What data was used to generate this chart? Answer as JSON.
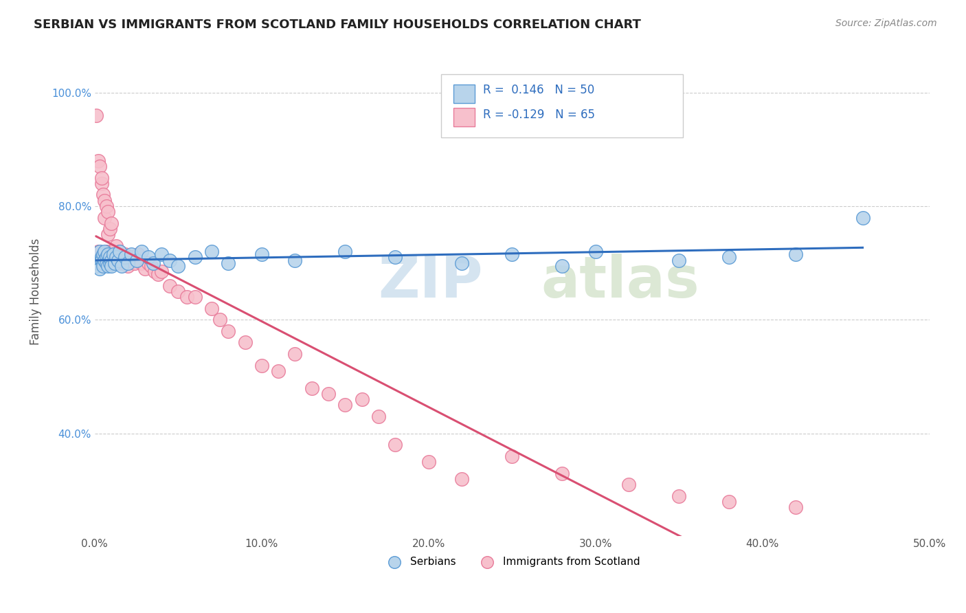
{
  "title": "SERBIAN VS IMMIGRANTS FROM SCOTLAND FAMILY HOUSEHOLDS CORRELATION CHART",
  "source": "Source: ZipAtlas.com",
  "ylabel": "Family Households",
  "xlim": [
    0.0,
    0.5
  ],
  "ylim": [
    0.22,
    1.08
  ],
  "x_ticks": [
    0.0,
    0.1,
    0.2,
    0.3,
    0.4,
    0.5
  ],
  "x_tick_labels": [
    "0.0%",
    "10.0%",
    "20.0%",
    "30.0%",
    "40.0%",
    "50.0%"
  ],
  "y_ticks": [
    0.4,
    0.6,
    0.8,
    1.0
  ],
  "y_tick_labels": [
    "40.0%",
    "60.0%",
    "80.0%",
    "100.0%"
  ],
  "R_serbian": 0.146,
  "N_serbian": 50,
  "R_scotland": -0.129,
  "N_scotland": 65,
  "serbian_fill": "#b8d4eb",
  "serbian_edge": "#5b9bd5",
  "scotland_fill": "#f7c0cc",
  "scotland_edge": "#e87b9a",
  "trend_serbian_color": "#2e6dbe",
  "trend_scotland_color": "#d94f72",
  "dashed_color": "#e8b0bc",
  "serbian_x": [
    0.001,
    0.002,
    0.003,
    0.003,
    0.004,
    0.004,
    0.005,
    0.005,
    0.005,
    0.006,
    0.006,
    0.007,
    0.007,
    0.008,
    0.008,
    0.009,
    0.009,
    0.01,
    0.01,
    0.011,
    0.012,
    0.013,
    0.014,
    0.015,
    0.016,
    0.018,
    0.02,
    0.022,
    0.025,
    0.028,
    0.032,
    0.035,
    0.04,
    0.045,
    0.05,
    0.06,
    0.07,
    0.08,
    0.1,
    0.12,
    0.15,
    0.18,
    0.22,
    0.25,
    0.28,
    0.3,
    0.35,
    0.38,
    0.42,
    0.46
  ],
  "serbian_y": [
    0.695,
    0.7,
    0.72,
    0.69,
    0.71,
    0.705,
    0.715,
    0.7,
    0.695,
    0.72,
    0.705,
    0.71,
    0.7,
    0.715,
    0.695,
    0.7,
    0.71,
    0.705,
    0.695,
    0.715,
    0.7,
    0.71,
    0.705,
    0.72,
    0.695,
    0.71,
    0.7,
    0.715,
    0.705,
    0.72,
    0.71,
    0.7,
    0.715,
    0.705,
    0.695,
    0.71,
    0.72,
    0.7,
    0.715,
    0.705,
    0.72,
    0.71,
    0.7,
    0.715,
    0.695,
    0.72,
    0.705,
    0.71,
    0.715,
    0.78
  ],
  "scotland_x": [
    0.001,
    0.001,
    0.002,
    0.002,
    0.003,
    0.003,
    0.004,
    0.004,
    0.005,
    0.005,
    0.006,
    0.006,
    0.007,
    0.007,
    0.008,
    0.008,
    0.009,
    0.009,
    0.01,
    0.01,
    0.011,
    0.012,
    0.013,
    0.014,
    0.015,
    0.016,
    0.017,
    0.018,
    0.019,
    0.02,
    0.022,
    0.024,
    0.026,
    0.028,
    0.03,
    0.032,
    0.034,
    0.036,
    0.038,
    0.04,
    0.045,
    0.05,
    0.055,
    0.06,
    0.07,
    0.075,
    0.08,
    0.09,
    0.1,
    0.11,
    0.12,
    0.13,
    0.14,
    0.15,
    0.16,
    0.17,
    0.18,
    0.2,
    0.22,
    0.25,
    0.28,
    0.32,
    0.35,
    0.38,
    0.42
  ],
  "scotland_y": [
    0.7,
    0.96,
    0.88,
    0.72,
    0.87,
    0.72,
    0.84,
    0.85,
    0.82,
    0.7,
    0.81,
    0.78,
    0.8,
    0.72,
    0.79,
    0.75,
    0.76,
    0.72,
    0.77,
    0.7,
    0.72,
    0.71,
    0.73,
    0.7,
    0.72,
    0.71,
    0.7,
    0.715,
    0.705,
    0.695,
    0.71,
    0.7,
    0.715,
    0.7,
    0.69,
    0.7,
    0.695,
    0.685,
    0.68,
    0.685,
    0.66,
    0.65,
    0.64,
    0.64,
    0.62,
    0.6,
    0.58,
    0.56,
    0.52,
    0.51,
    0.54,
    0.48,
    0.47,
    0.45,
    0.46,
    0.43,
    0.38,
    0.35,
    0.32,
    0.36,
    0.33,
    0.31,
    0.29,
    0.28,
    0.27
  ]
}
